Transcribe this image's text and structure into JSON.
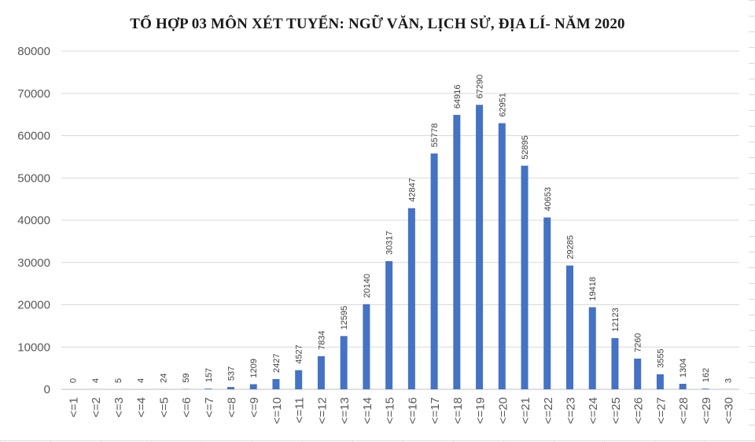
{
  "chart_data": {
    "type": "bar",
    "title": "TỔ HỢP 03 MÔN XÉT TUYỂN: NGỮ VĂN, LỊCH SỬ, ĐỊA LÍ- NĂM 2020",
    "xlabel": "",
    "ylabel": "",
    "ylim": [
      0,
      80000
    ],
    "yticks": [
      "0",
      "10000",
      "20000",
      "30000",
      "40000",
      "50000",
      "60000",
      "70000",
      "80000"
    ],
    "grid": true,
    "legend": "none",
    "bar_color": "#4472C4",
    "categories": [
      "<=1",
      "<=2",
      "<=3",
      "<=4",
      "<=5",
      "<=6",
      "<=7",
      "<=8",
      "<=9",
      "<=10",
      "<=11",
      "<=12",
      "<=13",
      "<=14",
      "<=15",
      "<=16",
      "<=17",
      "<=18",
      "<=19",
      "<=20",
      "<=21",
      "<=22",
      "<=23",
      "<=24",
      "<=25",
      "<=26",
      "<=27",
      "<=28",
      "<=29",
      "<=30"
    ],
    "values": [
      0,
      4,
      5,
      4,
      24,
      59,
      157,
      537,
      1209,
      2427,
      4527,
      7834,
      12595,
      20140,
      30317,
      42847,
      55778,
      64916,
      67290,
      62951,
      52895,
      40653,
      29285,
      19418,
      12123,
      7260,
      3555,
      1304,
      162,
      3
    ]
  }
}
